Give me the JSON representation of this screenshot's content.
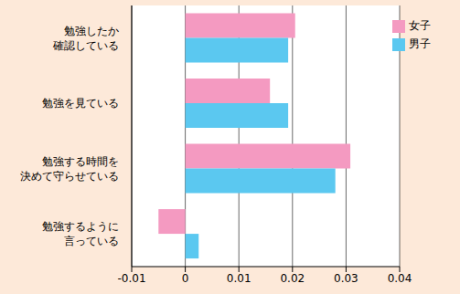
{
  "chart_data": {
    "type": "bar",
    "orientation": "horizontal",
    "categories": [
      "勉強したか\n確認している",
      "勉強を見ている",
      "勉強する時間を\n決めて守らせている",
      "勉強するように\n言っている"
    ],
    "series": [
      {
        "name": "女子",
        "color": "#f49ac1",
        "values": [
          0.0205,
          0.0158,
          0.0308,
          -0.005
        ]
      },
      {
        "name": "男子",
        "color": "#5bc8f0",
        "values": [
          0.0192,
          0.0192,
          0.028,
          0.0025
        ]
      }
    ],
    "xlim": [
      -0.01,
      0.04
    ],
    "xticks": [
      -0.01,
      0,
      0.01,
      0.02,
      0.03,
      0.04
    ],
    "grid": true,
    "legend": "upper right"
  }
}
